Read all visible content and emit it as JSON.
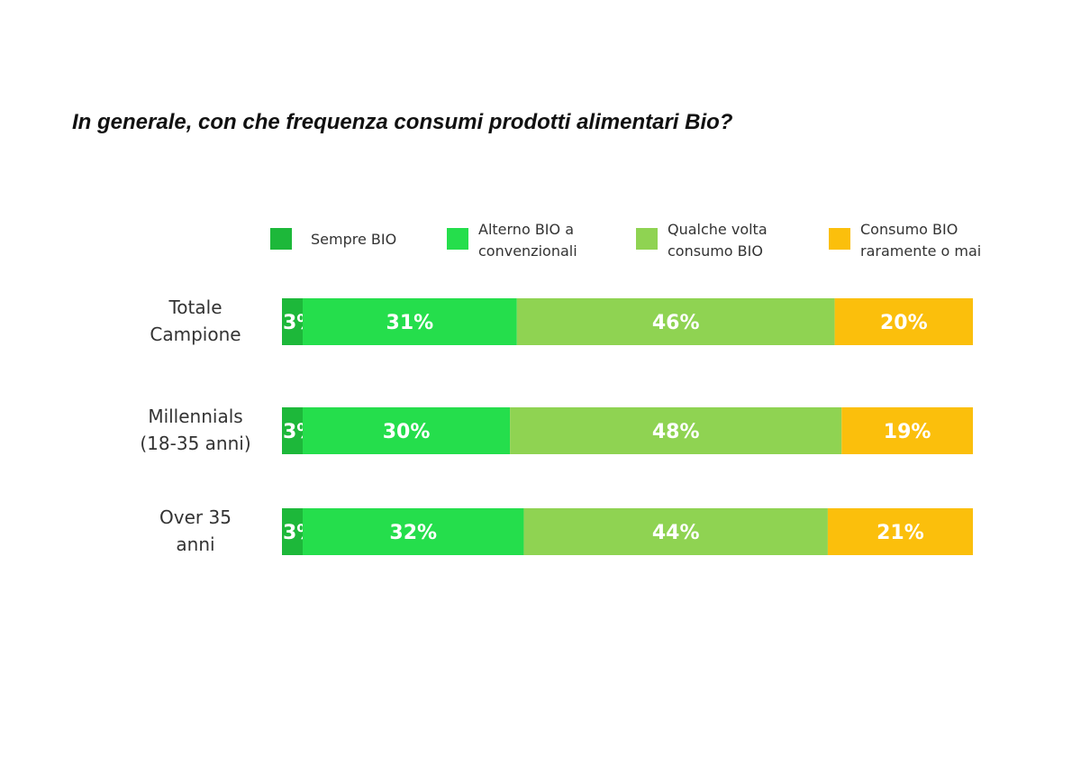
{
  "chart_data": {
    "type": "bar",
    "orientation": "horizontal",
    "stacked": true,
    "title": "In generale, con che frequenza consumi prodotti alimentari Bio?",
    "categories": [
      [
        "Totale",
        "Campione"
      ],
      [
        "Millennials",
        "(18-35 anni)"
      ],
      [
        "Over 35",
        "anni"
      ]
    ],
    "series": [
      {
        "name": [
          "Sempre BIO"
        ],
        "values": [
          3,
          3,
          3
        ],
        "labels": [
          "3%",
          "3%",
          "3%"
        ],
        "color": "#1db83a"
      },
      {
        "name": [
          "Alterno BIO a",
          "convenzionali"
        ],
        "values": [
          31,
          30,
          32
        ],
        "labels": [
          "31%",
          "30%",
          "32%"
        ],
        "color": "#25de4c"
      },
      {
        "name": [
          "Qualche volta",
          "consumo BIO"
        ],
        "values": [
          46,
          48,
          44
        ],
        "labels": [
          "46%",
          "48%",
          "44%"
        ],
        "color": "#8fd352"
      },
      {
        "name": [
          "Consumo BIO",
          "raramente o mai"
        ],
        "values": [
          20,
          19,
          21
        ],
        "labels": [
          "20%",
          "19%",
          "21%"
        ],
        "color": "#fbbf0c"
      }
    ],
    "legend": "top",
    "grid": false
  }
}
